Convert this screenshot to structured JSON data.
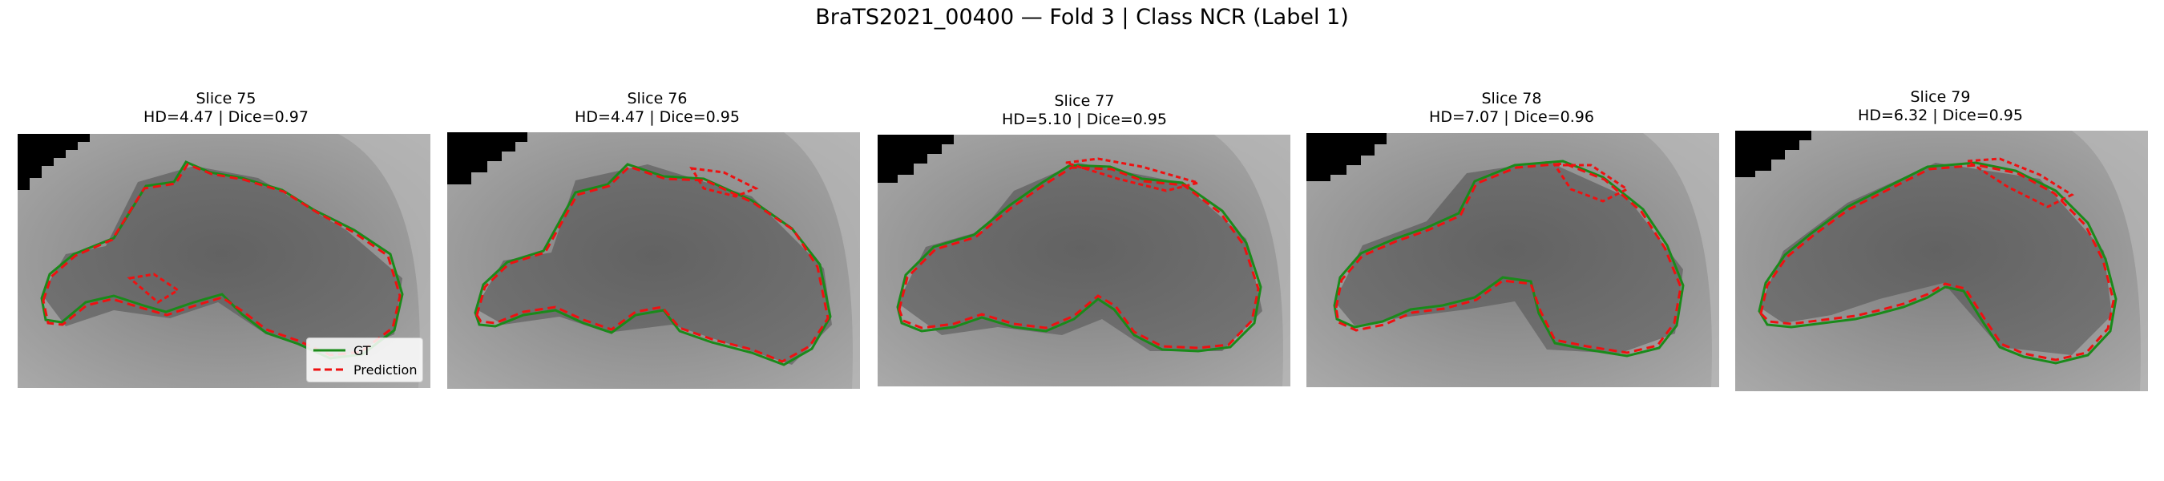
{
  "figure": {
    "title": "BraTS2021_00400 — Fold 3 | Class NCR (Label 1)"
  },
  "panels": [
    {
      "slice": "Slice 75",
      "metrics": "HD=4.47 | Dice=0.97"
    },
    {
      "slice": "Slice 76",
      "metrics": "HD=4.47 | Dice=0.95"
    },
    {
      "slice": "Slice 77",
      "metrics": "HD=5.10 | Dice=0.95"
    },
    {
      "slice": "Slice 78",
      "metrics": "HD=7.07 | Dice=0.96"
    },
    {
      "slice": "Slice 79",
      "metrics": "HD=6.32 | Dice=0.95"
    }
  ],
  "legend": {
    "gt_label": "GT",
    "pred_label": "Prediction"
  },
  "colors": {
    "gt": "#1a8a1a",
    "prediction": "#ee1111",
    "scan_gray": "#8c8c8c"
  }
}
